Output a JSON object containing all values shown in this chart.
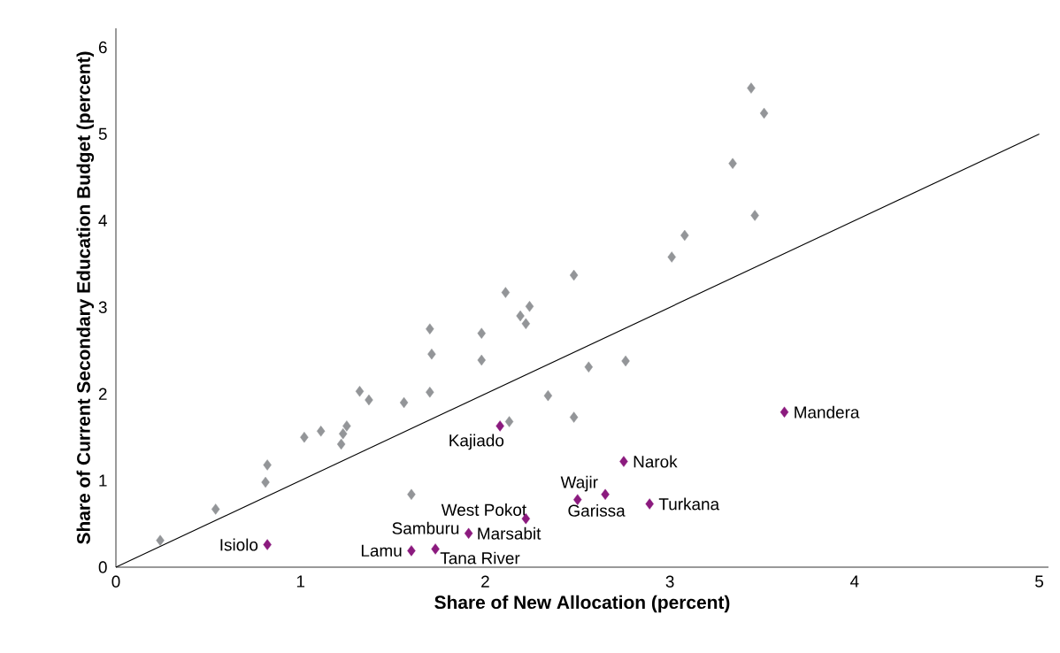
{
  "chart_data": {
    "type": "scatter",
    "xlabel": "Share of New Allocation (percent)",
    "ylabel": "Share of Current Secondary Education Budget (percent)",
    "xlim": [
      0,
      5.05
    ],
    "ylim": [
      0,
      6.22
    ],
    "xticks": [
      0,
      1,
      2,
      3,
      4,
      5
    ],
    "yticks": [
      0,
      1,
      2,
      3,
      4,
      5,
      6
    ],
    "grid": false,
    "marker": "diamond",
    "series": [
      {
        "color": "#939598",
        "x": [
          0.24,
          0.54,
          0.81,
          0.82,
          1.02,
          1.11,
          1.22,
          1.23,
          1.25,
          1.32,
          1.37,
          1.56,
          1.7,
          1.71,
          1.7,
          1.6,
          1.98,
          1.98,
          2.11,
          2.19,
          2.22,
          2.24,
          2.13,
          2.34,
          2.48,
          2.48,
          2.56,
          2.76,
          3.01,
          3.08,
          3.34,
          3.46,
          3.44,
          3.51
        ],
        "values": [
          0.31,
          0.67,
          0.98,
          1.18,
          1.5,
          1.57,
          1.42,
          1.54,
          1.63,
          2.03,
          1.93,
          1.9,
          2.02,
          2.46,
          2.75,
          0.84,
          2.7,
          2.39,
          3.17,
          2.9,
          2.81,
          3.01,
          1.68,
          1.98,
          1.73,
          3.37,
          2.31,
          2.38,
          3.58,
          3.83,
          4.66,
          4.06,
          5.53,
          5.24
        ]
      },
      {
        "color": "#8b1a7e",
        "x": [
          0.82,
          1.6,
          1.73,
          1.91,
          2.22,
          2.08,
          2.5,
          2.65,
          2.75,
          2.89,
          3.62
        ],
        "values": [
          0.26,
          0.19,
          0.21,
          0.39,
          0.56,
          1.63,
          0.78,
          0.84,
          1.22,
          0.73,
          1.79
        ]
      },
      {
        "type": "line",
        "color": "#000000",
        "marker": "none",
        "x": [
          0,
          5
        ],
        "values": [
          0,
          5
        ]
      }
    ],
    "annotations": [
      {
        "text": "Isiolo",
        "x": 0.82,
        "y": 0.26
      },
      {
        "text": "Lamu",
        "x": 1.6,
        "y": 0.19
      },
      {
        "text": "Samburu",
        "x": 1.91,
        "y": 0.39
      },
      {
        "text": "Tana River",
        "x": 1.73,
        "y": 0.21
      },
      {
        "text": "Marsabit",
        "x": 1.91,
        "y": 0.39
      },
      {
        "text": "West Pokot",
        "x": 2.22,
        "y": 0.56
      },
      {
        "text": "Kajiado",
        "x": 2.08,
        "y": 1.63
      },
      {
        "text": "Wajir",
        "x": 2.5,
        "y": 0.78
      },
      {
        "text": "Garissa",
        "x": 2.65,
        "y": 0.84
      },
      {
        "text": "Narok",
        "x": 2.75,
        "y": 1.22
      },
      {
        "text": "Turkana",
        "x": 2.89,
        "y": 0.73
      },
      {
        "text": "Mandera",
        "x": 3.62,
        "y": 1.79
      }
    ]
  }
}
